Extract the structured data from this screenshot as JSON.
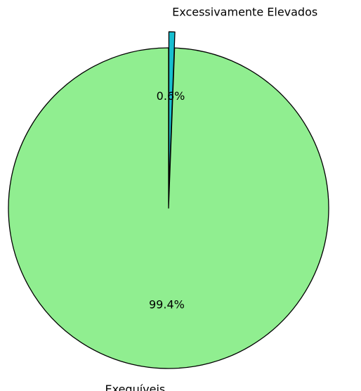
{
  "chart_data": {
    "type": "pie",
    "slices": [
      {
        "label": "Exequíveis",
        "value": 99.4,
        "pct_label": "99.4%",
        "color": "#90ee90",
        "explode": false
      },
      {
        "label": "Excessivamente Elevados",
        "value": 0.6,
        "pct_label": "0.6%",
        "color": "#17becf",
        "explode": true
      }
    ],
    "start_angle_deg": 90,
    "direction": "counterclockwise",
    "edge_color": "#000000"
  }
}
